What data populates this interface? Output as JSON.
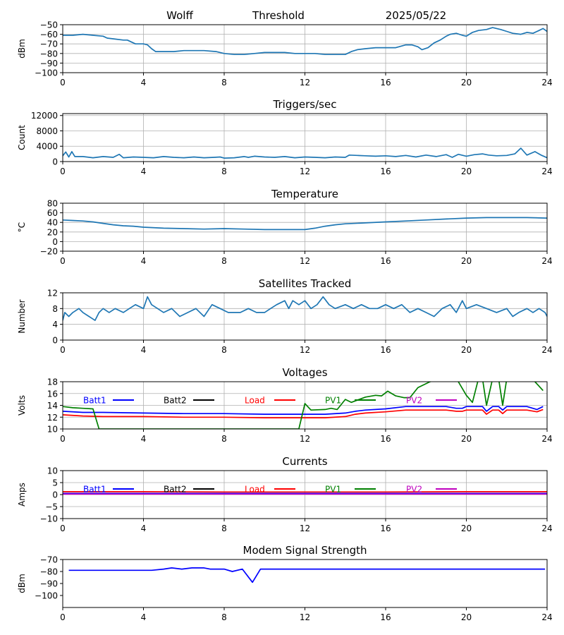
{
  "header": {
    "station": "Wolff",
    "mode": "Threshold",
    "date": "2025/05/22"
  },
  "chart_data": [
    {
      "type": "line",
      "title": "",
      "xlabel": "",
      "ylabel": "dBm",
      "xlim": [
        0,
        24
      ],
      "ylim": [
        -100,
        -50
      ],
      "xticks": [
        0,
        4,
        8,
        12,
        16,
        20,
        24
      ],
      "yticks": [
        -100,
        -90,
        -80,
        -70,
        -60,
        -50
      ],
      "grid": true,
      "series": [
        {
          "color": "#1f77b4",
          "x": [
            0,
            0.5,
            1,
            1.5,
            2,
            2.2,
            2.6,
            3,
            3.2,
            3.6,
            4,
            4.2,
            4.4,
            4.6,
            5,
            5.5,
            6,
            7,
            7.6,
            8,
            8.5,
            9,
            9.5,
            10,
            10.5,
            11,
            11.5,
            12,
            12.5,
            13,
            13.5,
            14,
            14.3,
            14.6,
            15,
            15.5,
            16,
            16.5,
            17,
            17.3,
            17.6,
            17.8,
            18.1,
            18.4,
            18.7,
            19,
            19.2,
            19.5,
            19.8,
            20,
            20.3,
            20.6,
            21,
            21.3,
            21.7,
            22,
            22.3,
            22.7,
            23,
            23.3,
            23.6,
            23.8,
            24
          ],
          "y": [
            -61,
            -61,
            -60,
            -61,
            -62,
            -64,
            -65,
            -66,
            -66,
            -70,
            -70,
            -71,
            -75,
            -78,
            -78,
            -78,
            -77,
            -77,
            -78,
            -80,
            -81,
            -81,
            -80,
            -79,
            -79,
            -79,
            -80,
            -80,
            -80,
            -81,
            -81,
            -81,
            -78,
            -76,
            -75,
            -74,
            -74,
            -74,
            -71,
            -71,
            -73,
            -76,
            -74,
            -69,
            -66,
            -62,
            -60,
            -59,
            -61,
            -62,
            -58,
            -56,
            -55,
            -53,
            -55,
            -57,
            -59,
            -60,
            -58,
            -59,
            -56,
            -54,
            -57
          ]
        }
      ]
    },
    {
      "type": "line",
      "title": "Triggers/sec",
      "xlabel": "",
      "ylabel": "Count",
      "xlim": [
        0,
        24
      ],
      "ylim": [
        0,
        12500
      ],
      "xticks": [
        0,
        4,
        8,
        12,
        16,
        20,
        24
      ],
      "yticks": [
        0,
        4000,
        8000,
        12000
      ],
      "grid": true,
      "series": [
        {
          "color": "#1f77b4",
          "x": [
            0,
            0.15,
            0.3,
            0.45,
            0.6,
            1,
            1.5,
            2,
            2.5,
            2.8,
            3,
            3.5,
            4,
            4.5,
            5,
            5.5,
            6,
            6.5,
            7,
            7.5,
            7.8,
            8,
            8.5,
            9,
            9.2,
            9.5,
            10,
            10.5,
            11,
            11.5,
            12,
            12.5,
            13,
            13.5,
            14,
            14.2,
            14.6,
            15,
            15.5,
            16,
            16.5,
            17,
            17.5,
            18,
            18.5,
            19,
            19.3,
            19.6,
            20,
            20.4,
            20.8,
            21.1,
            21.5,
            22,
            22.4,
            22.7,
            23,
            23.4,
            23.7,
            24
          ],
          "y": [
            1500,
            2500,
            1200,
            2600,
            1300,
            1300,
            1000,
            1300,
            1100,
            1900,
            1000,
            1200,
            1100,
            1000,
            1300,
            1100,
            1000,
            1200,
            1000,
            1100,
            1200,
            900,
            1000,
            1300,
            1100,
            1400,
            1200,
            1100,
            1300,
            1000,
            1200,
            1100,
            1000,
            1200,
            1100,
            1700,
            1600,
            1500,
            1400,
            1500,
            1300,
            1600,
            1200,
            1700,
            1300,
            1800,
            1100,
            1900,
            1400,
            1800,
            2000,
            1700,
            1500,
            1600,
            2000,
            3500,
            1700,
            2600,
            1700,
            1000
          ]
        }
      ]
    },
    {
      "type": "line",
      "title": "Temperature",
      "xlabel": "",
      "ylabel": "°C",
      "xlim": [
        0,
        24
      ],
      "ylim": [
        -20,
        80
      ],
      "xticks": [
        0,
        4,
        8,
        12,
        16,
        20,
        24
      ],
      "yticks": [
        -20,
        0,
        20,
        40,
        60,
        80
      ],
      "grid": true,
      "series": [
        {
          "color": "#1f77b4",
          "x": [
            0,
            0.5,
            1,
            1.5,
            2,
            2.5,
            3,
            3.5,
            4,
            5,
            6,
            7,
            8,
            9,
            10,
            11,
            12,
            12.5,
            13,
            13.5,
            14,
            15,
            16,
            17,
            18,
            19,
            20,
            21,
            22,
            23,
            24
          ],
          "y": [
            45,
            44,
            43,
            41,
            38,
            35,
            33,
            32,
            30,
            28,
            27,
            26,
            27,
            26,
            25,
            25,
            25,
            28,
            32,
            35,
            37,
            39,
            41,
            43,
            45,
            47,
            49,
            50,
            50,
            50,
            49
          ]
        }
      ]
    },
    {
      "type": "line",
      "title": "Satellites Tracked",
      "xlabel": "",
      "ylabel": "Number",
      "xlim": [
        0,
        24
      ],
      "ylim": [
        0,
        12
      ],
      "xticks": [
        0,
        4,
        8,
        12,
        16,
        20,
        24
      ],
      "yticks": [
        0,
        4,
        8,
        12
      ],
      "grid": true,
      "series": [
        {
          "color": "#1f77b4",
          "x": [
            0,
            0.1,
            0.3,
            0.5,
            0.8,
            1,
            1.3,
            1.6,
            1.8,
            2,
            2.3,
            2.6,
            3,
            3.3,
            3.6,
            4,
            4.2,
            4.4,
            4.7,
            5,
            5.4,
            5.8,
            6.2,
            6.6,
            7,
            7.4,
            7.8,
            8.2,
            8.5,
            8.8,
            9.2,
            9.6,
            10,
            10.3,
            10.6,
            11,
            11.2,
            11.4,
            11.7,
            12,
            12.3,
            12.6,
            12.9,
            13.2,
            13.5,
            14,
            14.4,
            14.8,
            15.2,
            15.6,
            16,
            16.4,
            16.8,
            17.2,
            17.6,
            18,
            18.4,
            18.8,
            19.2,
            19.5,
            19.8,
            20,
            20.5,
            21,
            21.5,
            22,
            22.3,
            22.6,
            23,
            23.3,
            23.6,
            23.9,
            24
          ],
          "y": [
            5,
            7,
            6,
            7,
            8,
            7,
            6,
            5,
            7,
            8,
            7,
            8,
            7,
            8,
            9,
            8,
            11,
            9,
            8,
            7,
            8,
            6,
            7,
            8,
            6,
            9,
            8,
            7,
            7,
            7,
            8,
            7,
            7,
            8,
            9,
            10,
            8,
            10,
            9,
            10,
            8,
            9,
            11,
            9,
            8,
            9,
            8,
            9,
            8,
            8,
            9,
            8,
            9,
            7,
            8,
            7,
            6,
            8,
            9,
            7,
            10,
            8,
            9,
            8,
            7,
            8,
            6,
            7,
            8,
            7,
            8,
            7,
            6
          ]
        }
      ]
    },
    {
      "type": "line",
      "title": "Voltages",
      "xlabel": "",
      "ylabel": "Volts",
      "xlim": [
        0,
        24
      ],
      "ylim": [
        10,
        18
      ],
      "xticks": [
        0,
        4,
        8,
        12,
        16,
        20,
        24
      ],
      "yticks": [
        10,
        12,
        14,
        16,
        18
      ],
      "grid": true,
      "legend": [
        "Batt1",
        "Batt2",
        "Load",
        "PV1",
        "PV2"
      ],
      "series": [
        {
          "name": "Batt1",
          "color": "#0000ff",
          "x": [
            0,
            1,
            2,
            4,
            6,
            8,
            10,
            12,
            13,
            14,
            14.5,
            15,
            16,
            17,
            18,
            19,
            19.5,
            19.8,
            20,
            20.5,
            20.8,
            21,
            21.3,
            21.6,
            21.8,
            22,
            23,
            23.5,
            23.8
          ],
          "y": [
            13,
            12.8,
            12.8,
            12.7,
            12.6,
            12.6,
            12.5,
            12.5,
            12.5,
            12.7,
            13,
            13.2,
            13.4,
            13.8,
            13.8,
            13.8,
            13.5,
            13.5,
            13.8,
            13.8,
            13.8,
            13,
            13.8,
            13.8,
            13.2,
            13.8,
            13.8,
            13.3,
            13.8
          ]
        },
        {
          "name": "Load",
          "color": "#ff0000",
          "x": [
            0,
            1,
            2,
            4,
            6,
            8,
            10,
            12,
            13,
            14,
            14.5,
            15,
            16,
            17,
            18,
            19,
            19.5,
            19.8,
            20,
            20.5,
            20.8,
            21,
            21.3,
            21.6,
            21.8,
            22,
            23,
            23.5,
            23.8
          ],
          "y": [
            12.4,
            12.2,
            12.1,
            12.1,
            12,
            12,
            11.9,
            11.9,
            11.9,
            12.1,
            12.5,
            12.7,
            12.9,
            13.2,
            13.2,
            13.2,
            13,
            13,
            13.2,
            13.2,
            13.2,
            12.5,
            13.2,
            13.2,
            12.6,
            13.2,
            13.2,
            12.9,
            13.3
          ]
        },
        {
          "name": "PV1",
          "color": "#008000",
          "x": [
            0,
            0.5,
            1,
            1.5,
            1.8,
            11.7,
            12,
            12.3,
            13,
            13.3,
            13.6,
            14,
            14.3,
            15,
            15.5,
            15.8,
            16.1,
            16.5,
            16.9,
            17.2,
            17.6,
            18.2,
            18.7,
            19.2,
            19.6,
            20,
            20.3,
            20.6,
            20.8,
            21,
            21.3,
            21.6,
            21.8,
            22,
            22.5,
            23,
            23.4,
            23.8
          ],
          "y": [
            13.8,
            13.6,
            13.5,
            13.4,
            10,
            10,
            14.3,
            13.2,
            13.3,
            13.5,
            13.3,
            15,
            14.5,
            15.4,
            15.7,
            15.6,
            16.4,
            15.6,
            15.3,
            15.3,
            17,
            18,
            18.5,
            18.5,
            18,
            15.7,
            14.5,
            18.5,
            18.5,
            14,
            18.5,
            18.5,
            14,
            18.5,
            18.5,
            18.5,
            18,
            16.5
          ]
        }
      ]
    },
    {
      "type": "line",
      "title": "Currents",
      "xlabel": "",
      "ylabel": "Amps",
      "xlim": [
        0,
        24
      ],
      "ylim": [
        -10,
        10
      ],
      "xticks": [
        0,
        4,
        8,
        12,
        16,
        20,
        24
      ],
      "yticks": [
        -10,
        -5,
        0,
        5,
        10
      ],
      "grid": true,
      "legend": [
        "Batt1",
        "Batt2",
        "Load",
        "PV1",
        "PV2"
      ],
      "series": [
        {
          "name": "Load",
          "color": "#ff0000",
          "x": [
            0,
            4,
            8,
            12,
            16,
            20,
            24
          ],
          "y": [
            1.2,
            1.2,
            1.1,
            1.1,
            1.1,
            1.2,
            1.2
          ]
        },
        {
          "name": "Batt1",
          "color": "#0000ff",
          "x": [
            0,
            4,
            8,
            12,
            16,
            20,
            24
          ],
          "y": [
            0.5,
            0.5,
            0.5,
            0.5,
            0.5,
            0.5,
            0.5
          ]
        },
        {
          "name": "PV2",
          "color": "#bf00bf",
          "x": [
            0,
            4,
            8,
            12,
            16,
            20,
            24
          ],
          "y": [
            0.2,
            0.2,
            0.2,
            0.2,
            0.2,
            0.2,
            0.2
          ]
        }
      ]
    },
    {
      "type": "line",
      "title": "Modem Signal Strength",
      "xlabel": "",
      "ylabel": "dBm",
      "xlim": [
        0,
        24
      ],
      "ylim": [
        -110,
        -70
      ],
      "xticks": [
        0,
        4,
        8,
        12,
        16,
        20,
        24
      ],
      "yticks": [
        -100,
        -90,
        -80,
        -70
      ],
      "grid": false,
      "series": [
        {
          "color": "#0000ff",
          "x": [
            0.3,
            1,
            2,
            3,
            4.4,
            5,
            5.4,
            5.9,
            6.4,
            7,
            7.3,
            7.6,
            8,
            8.4,
            8.9,
            9.4,
            9.8,
            10.5,
            12,
            16,
            20,
            23.9
          ],
          "y": [
            -79,
            -79,
            -79,
            -79,
            -79,
            -78,
            -77,
            -78,
            -77,
            -77,
            -78,
            -78,
            -78,
            -80,
            -78,
            -89,
            -78,
            -78,
            -78,
            -78,
            -78,
            -78
          ]
        }
      ]
    }
  ]
}
